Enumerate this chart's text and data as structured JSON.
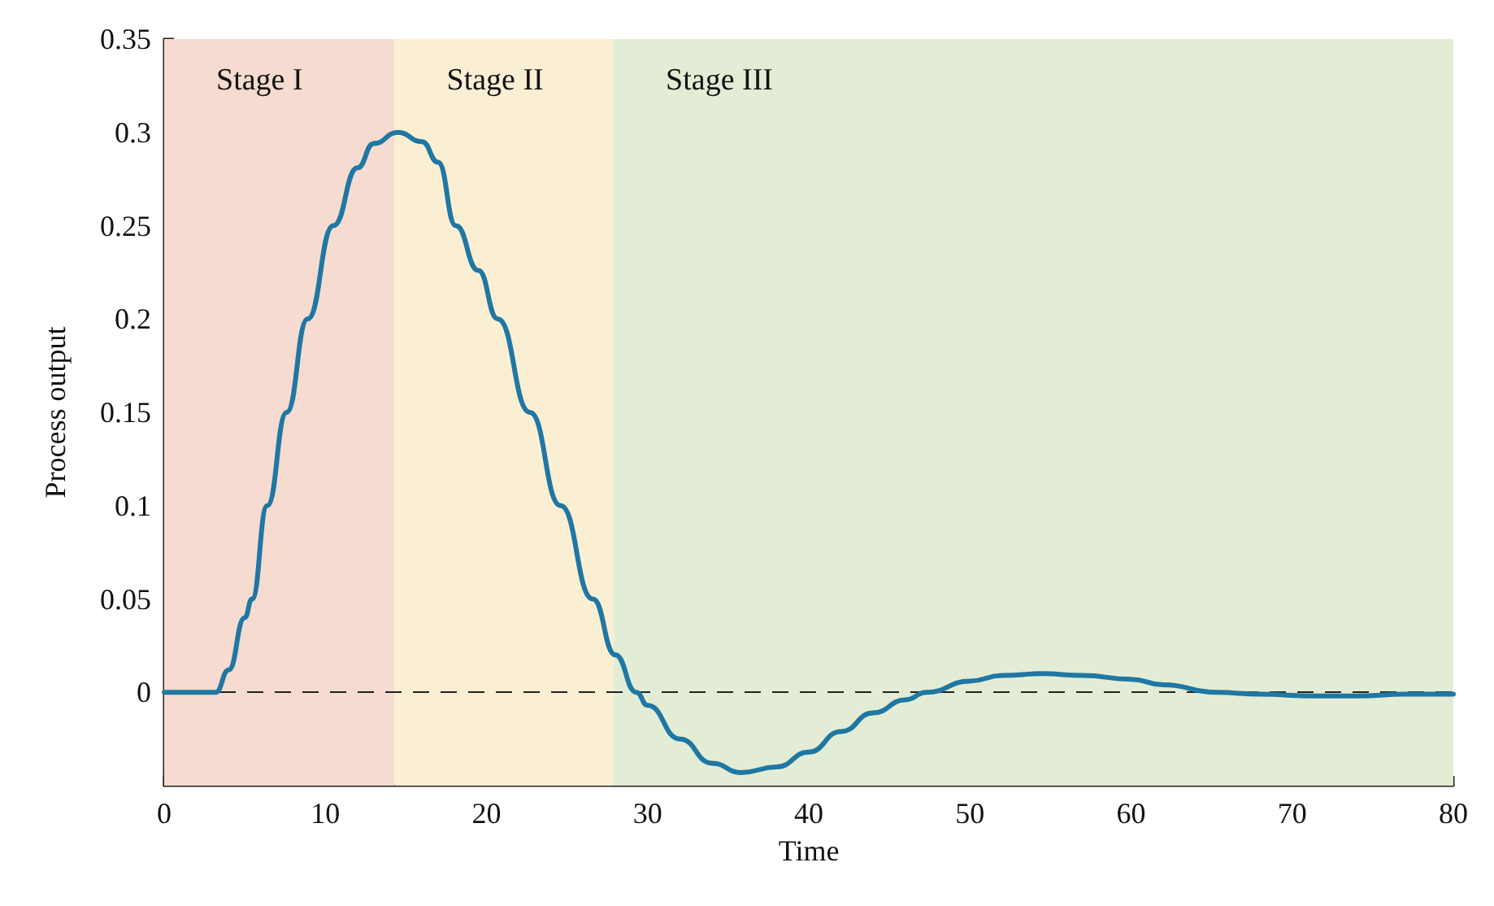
{
  "chart_data": {
    "type": "line",
    "xlabel": "Time",
    "ylabel": "Process output",
    "xlim": [
      0,
      80
    ],
    "xticks": [
      0,
      10,
      20,
      30,
      40,
      50,
      60,
      70,
      80
    ],
    "ylim": [
      -0.05,
      0.35
    ],
    "yticks": [
      0,
      0.05,
      0.1,
      0.15,
      0.2,
      0.25,
      0.3,
      0.35
    ],
    "grid": false,
    "marker": "none",
    "line_style": "solid",
    "series": [
      {
        "color": "#1f77a3",
        "x": [
          0,
          1,
          2,
          3,
          3.2,
          4,
          5,
          5.45,
          6.4,
          7.6,
          8.9,
          10.5,
          12,
          13,
          14.5,
          16,
          17,
          18.1,
          19.5,
          20.7,
          22.7,
          24.6,
          26.6,
          28,
          29.3,
          30,
          32,
          34,
          35.8,
          38,
          40,
          42,
          44,
          46,
          47.3,
          50,
          52,
          54.5,
          57,
          60,
          62,
          65.3,
          68,
          71.4,
          74,
          77,
          80
        ],
        "values": [
          0,
          0,
          0,
          0,
          0,
          0.012,
          0.04,
          0.05,
          0.1,
          0.15,
          0.2,
          0.25,
          0.281,
          0.294,
          0.3,
          0.295,
          0.284,
          0.25,
          0.226,
          0.2,
          0.15,
          0.1,
          0.05,
          0.02,
          0,
          -0.007,
          -0.025,
          -0.038,
          -0.043,
          -0.04,
          -0.032,
          -0.021,
          -0.011,
          -0.004,
          0,
          0.006,
          0.009,
          0.01,
          0.009,
          0.007,
          0.004,
          0,
          -0.001,
          -0.002,
          -0.002,
          -0.001,
          -0.001
        ]
      }
    ],
    "ref_lines": [
      {
        "axis": "y",
        "value": 0,
        "color": "#222222",
        "line_style": "dashed"
      }
    ],
    "bands": [
      {
        "axis": "x",
        "from": 0,
        "to": 14.3,
        "label": "Stage I",
        "color": "#f5dbd0"
      },
      {
        "axis": "x",
        "from": 14.3,
        "to": 27.9,
        "label": "Stage II",
        "color": "#faefd3"
      },
      {
        "axis": "x",
        "from": 27.9,
        "to": 80,
        "label": "Stage III",
        "color": "#e3ecd5"
      }
    ]
  }
}
